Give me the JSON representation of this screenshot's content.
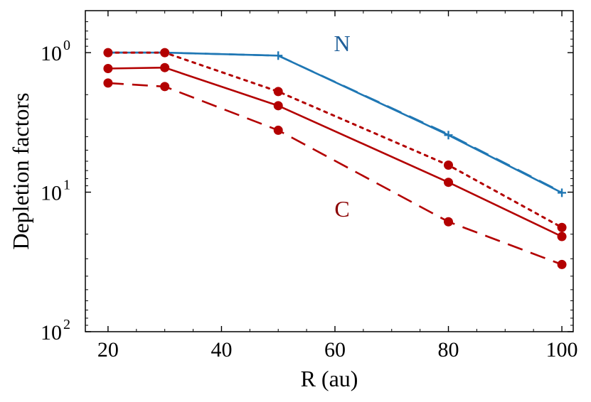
{
  "chart_data": {
    "type": "line",
    "xlabel": "R (au)",
    "ylabel": "Depletion factors",
    "xlim": [
      16,
      102
    ],
    "ylim": [
      100,
      0.5
    ],
    "yscale": "log",
    "y_inverted": true,
    "grid": false,
    "x_ticks": [
      20,
      40,
      60,
      80,
      100
    ],
    "x_tick_labels": [
      "20",
      "40",
      "60",
      "80",
      "100"
    ],
    "y_ticks": [
      1,
      10,
      100
    ],
    "y_tick_labels": [
      {
        "base": "10",
        "exp": "0"
      },
      {
        "base": "10",
        "exp": "1"
      },
      {
        "base": "10",
        "exp": "2"
      }
    ],
    "annotations": [
      {
        "text": "N",
        "color": "#1f5f99"
      },
      {
        "text": "C",
        "color": "#8b0000"
      }
    ],
    "x": [
      20,
      30,
      50,
      80,
      100
    ],
    "series": [
      {
        "line": "solid",
        "marker": "plus",
        "color": "#1f77b4",
        "values": [
          1.0,
          1.0,
          1.05,
          3.9,
          10.1
        ]
      },
      {
        "line": "dashed",
        "marker": "none",
        "color": "#1f77b4",
        "values": [
          1.0,
          1.0,
          1.05,
          3.85,
          10.0
        ]
      },
      {
        "line": "dotted",
        "marker": "circle",
        "color": "#b30000",
        "values": [
          1.0,
          1.0,
          1.9,
          6.4,
          17.9
        ]
      },
      {
        "line": "solid",
        "marker": "circle",
        "color": "#b30000",
        "values": [
          1.3,
          1.28,
          2.4,
          8.5,
          20.8
        ]
      },
      {
        "line": "dashed",
        "marker": "circle",
        "color": "#b30000",
        "values": [
          1.65,
          1.75,
          3.6,
          16.3,
          33.0
        ]
      }
    ]
  }
}
